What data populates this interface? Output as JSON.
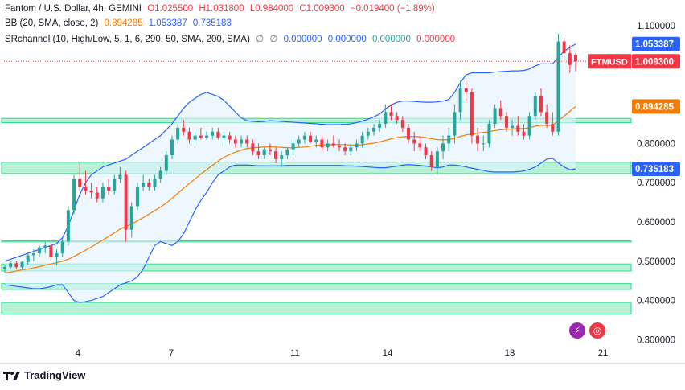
{
  "header": {
    "symbol_line": [
      "Fantom / U.S. Dollar, 4h, GEMINI",
      "O1.025500",
      "H1.031800",
      "L0.984000",
      "C1.009300",
      "−0.019400 (−1.89%)"
    ],
    "bb_line": [
      "BB (20, SMA, close, 2)",
      "0.894285",
      "1.053387",
      "0.735183"
    ],
    "sr_line": [
      "SRchannel (10, High/Low, 5, 1, 6, 290, 50, SMA, 200, SMA)",
      "∅",
      "∅",
      "0.000000",
      "0.000000",
      "0.000000",
      "0.000000"
    ]
  },
  "footer": {
    "brand": "TradingView"
  },
  "icons": [
    "flash-icon",
    "globe-icon"
  ],
  "colors": {
    "up": "#26a69a",
    "down": "#f23645",
    "basis": "#f57c00",
    "band": "#2962ff",
    "band_fill": "#e3f2fd",
    "zone": "#1ed67e",
    "grid": "#ffffff"
  },
  "chart_data": {
    "type": "candlestick",
    "x_tick_labels": [
      "4",
      "7",
      "11",
      "14",
      "18",
      "21"
    ],
    "y_tick_labels": [
      "1.100000",
      "1.000000",
      "0.800000",
      "0.700000",
      "0.600000",
      "0.500000",
      "0.400000",
      "0.300000"
    ],
    "y_ticks": [
      1.1,
      1.0,
      0.8,
      0.7,
      0.6,
      0.5,
      0.4,
      0.3
    ],
    "ylim": [
      0.27,
      1.13
    ],
    "price_labels": [
      {
        "text": "1.053387",
        "value": 1.053387,
        "kind": "band"
      },
      {
        "symbol": "FTMUSD",
        "text": "1.009300",
        "value": 1.0093,
        "kind": "last"
      },
      {
        "text": "0.894285",
        "value": 0.894285,
        "kind": "basis"
      },
      {
        "text": "0.735183",
        "value": 0.735183,
        "kind": "band"
      }
    ],
    "sr_zones": [
      [
        0.853,
        0.864
      ],
      [
        0.723,
        0.752
      ],
      [
        0.549,
        0.552
      ],
      [
        0.475,
        0.493
      ],
      [
        0.428,
        0.443
      ],
      [
        0.365,
        0.395
      ]
    ],
    "candles": [
      [
        0.48,
        0.49,
        0.47,
        0.485
      ],
      [
        0.485,
        0.5,
        0.48,
        0.495
      ],
      [
        0.495,
        0.5,
        0.48,
        0.485
      ],
      [
        0.485,
        0.5,
        0.48,
        0.498
      ],
      [
        0.498,
        0.52,
        0.49,
        0.515
      ],
      [
        0.515,
        0.53,
        0.5,
        0.52
      ],
      [
        0.52,
        0.54,
        0.51,
        0.535
      ],
      [
        0.535,
        0.55,
        0.52,
        0.54
      ],
      [
        0.54,
        0.55,
        0.5,
        0.51
      ],
      [
        0.51,
        0.53,
        0.49,
        0.52
      ],
      [
        0.52,
        0.56,
        0.51,
        0.55
      ],
      [
        0.55,
        0.64,
        0.54,
        0.63
      ],
      [
        0.63,
        0.72,
        0.62,
        0.71
      ],
      [
        0.71,
        0.75,
        0.68,
        0.69
      ],
      [
        0.69,
        0.73,
        0.67,
        0.68
      ],
      [
        0.68,
        0.7,
        0.66,
        0.675
      ],
      [
        0.675,
        0.69,
        0.65,
        0.66
      ],
      [
        0.66,
        0.7,
        0.65,
        0.69
      ],
      [
        0.69,
        0.71,
        0.67,
        0.68
      ],
      [
        0.68,
        0.72,
        0.67,
        0.71
      ],
      [
        0.71,
        0.74,
        0.7,
        0.72
      ],
      [
        0.72,
        0.73,
        0.55,
        0.58
      ],
      [
        0.58,
        0.65,
        0.56,
        0.64
      ],
      [
        0.64,
        0.7,
        0.63,
        0.69
      ],
      [
        0.69,
        0.72,
        0.68,
        0.7
      ],
      [
        0.7,
        0.71,
        0.68,
        0.69
      ],
      [
        0.69,
        0.72,
        0.68,
        0.71
      ],
      [
        0.71,
        0.74,
        0.7,
        0.73
      ],
      [
        0.73,
        0.78,
        0.72,
        0.77
      ],
      [
        0.77,
        0.82,
        0.76,
        0.81
      ],
      [
        0.81,
        0.85,
        0.8,
        0.84
      ],
      [
        0.84,
        0.86,
        0.82,
        0.83
      ],
      [
        0.83,
        0.84,
        0.8,
        0.81
      ],
      [
        0.81,
        0.83,
        0.8,
        0.82
      ],
      [
        0.82,
        0.84,
        0.81,
        0.815
      ],
      [
        0.815,
        0.83,
        0.81,
        0.82
      ],
      [
        0.82,
        0.84,
        0.81,
        0.83
      ],
      [
        0.83,
        0.84,
        0.81,
        0.815
      ],
      [
        0.815,
        0.83,
        0.8,
        0.82
      ],
      [
        0.82,
        0.83,
        0.8,
        0.81
      ],
      [
        0.81,
        0.82,
        0.79,
        0.8
      ],
      [
        0.8,
        0.82,
        0.79,
        0.81
      ],
      [
        0.81,
        0.82,
        0.79,
        0.8
      ],
      [
        0.8,
        0.81,
        0.77,
        0.78
      ],
      [
        0.78,
        0.8,
        0.76,
        0.77
      ],
      [
        0.77,
        0.79,
        0.76,
        0.785
      ],
      [
        0.785,
        0.8,
        0.77,
        0.78
      ],
      [
        0.78,
        0.79,
        0.75,
        0.76
      ],
      [
        0.76,
        0.78,
        0.74,
        0.77
      ],
      [
        0.77,
        0.79,
        0.76,
        0.785
      ],
      [
        0.785,
        0.81,
        0.77,
        0.8
      ],
      [
        0.8,
        0.82,
        0.79,
        0.81
      ],
      [
        0.81,
        0.83,
        0.8,
        0.82
      ],
      [
        0.82,
        0.83,
        0.8,
        0.805
      ],
      [
        0.805,
        0.82,
        0.79,
        0.81
      ],
      [
        0.81,
        0.82,
        0.78,
        0.79
      ],
      [
        0.79,
        0.81,
        0.78,
        0.8
      ],
      [
        0.8,
        0.82,
        0.79,
        0.795
      ],
      [
        0.795,
        0.81,
        0.78,
        0.79
      ],
      [
        0.79,
        0.8,
        0.77,
        0.78
      ],
      [
        0.78,
        0.8,
        0.77,
        0.79
      ],
      [
        0.79,
        0.81,
        0.78,
        0.8
      ],
      [
        0.8,
        0.83,
        0.79,
        0.82
      ],
      [
        0.82,
        0.84,
        0.81,
        0.83
      ],
      [
        0.83,
        0.85,
        0.82,
        0.84
      ],
      [
        0.84,
        0.86,
        0.83,
        0.85
      ],
      [
        0.85,
        0.9,
        0.84,
        0.88
      ],
      [
        0.88,
        0.9,
        0.86,
        0.87
      ],
      [
        0.87,
        0.88,
        0.85,
        0.86
      ],
      [
        0.86,
        0.87,
        0.83,
        0.84
      ],
      [
        0.84,
        0.85,
        0.8,
        0.81
      ],
      [
        0.81,
        0.83,
        0.78,
        0.8
      ],
      [
        0.8,
        0.82,
        0.78,
        0.79
      ],
      [
        0.79,
        0.8,
        0.76,
        0.77
      ],
      [
        0.77,
        0.78,
        0.73,
        0.74
      ],
      [
        0.74,
        0.79,
        0.72,
        0.78
      ],
      [
        0.78,
        0.82,
        0.76,
        0.8
      ],
      [
        0.8,
        0.84,
        0.78,
        0.82
      ],
      [
        0.82,
        0.9,
        0.8,
        0.88
      ],
      [
        0.88,
        0.96,
        0.86,
        0.94
      ],
      [
        0.94,
        0.96,
        0.91,
        0.93
      ],
      [
        0.93,
        0.94,
        0.8,
        0.82
      ],
      [
        0.82,
        0.84,
        0.78,
        0.8
      ],
      [
        0.8,
        0.82,
        0.78,
        0.8
      ],
      [
        0.8,
        0.86,
        0.79,
        0.85
      ],
      [
        0.85,
        0.9,
        0.84,
        0.89
      ],
      [
        0.89,
        0.91,
        0.86,
        0.87
      ],
      [
        0.87,
        0.88,
        0.83,
        0.84
      ],
      [
        0.84,
        0.86,
        0.82,
        0.845
      ],
      [
        0.845,
        0.87,
        0.82,
        0.83
      ],
      [
        0.83,
        0.85,
        0.81,
        0.82
      ],
      [
        0.82,
        0.88,
        0.81,
        0.87
      ],
      [
        0.87,
        0.93,
        0.86,
        0.92
      ],
      [
        0.92,
        0.94,
        0.87,
        0.88
      ],
      [
        0.88,
        0.9,
        0.84,
        0.85
      ],
      [
        0.85,
        0.88,
        0.82,
        0.83
      ],
      [
        0.83,
        1.08,
        0.82,
        1.06
      ],
      [
        1.06,
        1.07,
        1.01,
        1.03
      ],
      [
        1.03,
        1.05,
        0.98,
        1.0
      ],
      [
        1.025,
        1.03,
        0.984,
        1.009
      ]
    ],
    "bb_basis": [
      0.47,
      0.472,
      0.475,
      0.478,
      0.48,
      0.483,
      0.486,
      0.49,
      0.493,
      0.496,
      0.5,
      0.505,
      0.512,
      0.52,
      0.528,
      0.536,
      0.545,
      0.554,
      0.563,
      0.572,
      0.582,
      0.588,
      0.595,
      0.603,
      0.611,
      0.62,
      0.629,
      0.638,
      0.648,
      0.66,
      0.673,
      0.686,
      0.698,
      0.71,
      0.722,
      0.733,
      0.744,
      0.755,
      0.765,
      0.772,
      0.778,
      0.783,
      0.787,
      0.789,
      0.79,
      0.791,
      0.792,
      0.791,
      0.79,
      0.789,
      0.789,
      0.79,
      0.791,
      0.793,
      0.795,
      0.796,
      0.797,
      0.797,
      0.797,
      0.797,
      0.796,
      0.796,
      0.797,
      0.799,
      0.801,
      0.804,
      0.808,
      0.812,
      0.815,
      0.817,
      0.818,
      0.818,
      0.817,
      0.815,
      0.812,
      0.81,
      0.809,
      0.81,
      0.813,
      0.818,
      0.822,
      0.824,
      0.826,
      0.828,
      0.83,
      0.833,
      0.835,
      0.836,
      0.837,
      0.838,
      0.838,
      0.84,
      0.844,
      0.846,
      0.846,
      0.846,
      0.858,
      0.87,
      0.882,
      0.894285
    ],
    "bb_upper": [
      0.5,
      0.505,
      0.51,
      0.515,
      0.52,
      0.525,
      0.53,
      0.535,
      0.54,
      0.545,
      0.56,
      0.59,
      0.63,
      0.67,
      0.7,
      0.72,
      0.73,
      0.74,
      0.745,
      0.75,
      0.755,
      0.76,
      0.77,
      0.78,
      0.79,
      0.8,
      0.81,
      0.82,
      0.835,
      0.85,
      0.87,
      0.89,
      0.905,
      0.915,
      0.925,
      0.93,
      0.925,
      0.92,
      0.91,
      0.895,
      0.88,
      0.865,
      0.858,
      0.856,
      0.855,
      0.856,
      0.858,
      0.857,
      0.856,
      0.855,
      0.854,
      0.853,
      0.852,
      0.851,
      0.85,
      0.849,
      0.848,
      0.848,
      0.848,
      0.849,
      0.85,
      0.853,
      0.857,
      0.862,
      0.868,
      0.875,
      0.888,
      0.898,
      0.905,
      0.908,
      0.908,
      0.907,
      0.906,
      0.905,
      0.905,
      0.906,
      0.908,
      0.912,
      0.93,
      0.955,
      0.975,
      0.98,
      0.98,
      0.98,
      0.98,
      0.982,
      0.983,
      0.984,
      0.985,
      0.985,
      0.986,
      0.99,
      0.998,
      1.003,
      1.003,
      1.003,
      1.02,
      1.035,
      1.045,
      1.053387
    ],
    "bb_lower": [
      0.44,
      0.438,
      0.436,
      0.434,
      0.432,
      0.43,
      0.43,
      0.432,
      0.435,
      0.44,
      0.44,
      0.42,
      0.4,
      0.395,
      0.397,
      0.4,
      0.405,
      0.41,
      0.42,
      0.43,
      0.44,
      0.445,
      0.45,
      0.46,
      0.48,
      0.51,
      0.54,
      0.55,
      0.545,
      0.54,
      0.55,
      0.57,
      0.6,
      0.63,
      0.655,
      0.675,
      0.7,
      0.72,
      0.73,
      0.74,
      0.745,
      0.745,
      0.745,
      0.744,
      0.743,
      0.743,
      0.743,
      0.743,
      0.743,
      0.744,
      0.744,
      0.744,
      0.744,
      0.744,
      0.744,
      0.744,
      0.744,
      0.744,
      0.744,
      0.743,
      0.743,
      0.742,
      0.741,
      0.74,
      0.739,
      0.738,
      0.738,
      0.74,
      0.742,
      0.745,
      0.746,
      0.745,
      0.744,
      0.742,
      0.74,
      0.738,
      0.74,
      0.745,
      0.745,
      0.743,
      0.74,
      0.737,
      0.734,
      0.731,
      0.728,
      0.727,
      0.727,
      0.727,
      0.727,
      0.728,
      0.73,
      0.734,
      0.74,
      0.75,
      0.76,
      0.762,
      0.75,
      0.74,
      0.733,
      0.735183
    ]
  }
}
